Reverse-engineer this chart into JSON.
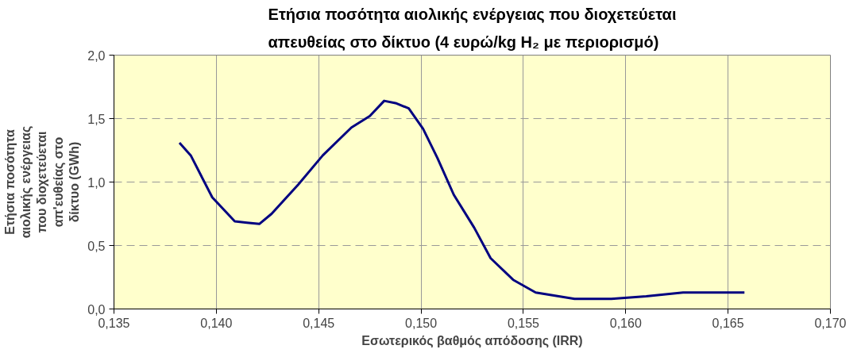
{
  "chart_data": {
    "type": "line",
    "title": "Ετήσια ποσότητα αιολικής ενέργειας που διοχετεύεται απευθείας στο δίκτυο (4 ευρώ/kg H₂ με περιορισμό)",
    "xlabel": "Εσωτερικός βαθμός απόδοσης (IRR)",
    "ylabel": "Ετήσια ποσότητα αιολικής ενέργειας που διοχετεύεται απ'ευθείας στο δίκτυο (GWh)",
    "x": [
      0.1382,
      0.13875,
      0.1398,
      0.1409,
      0.1415,
      0.1421,
      0.1427,
      0.144,
      0.1452,
      0.1466,
      0.1475,
      0.1482,
      0.1488,
      0.1494,
      0.1501,
      0.1508,
      0.1516,
      0.1526,
      0.1534,
      0.1545,
      0.1556,
      0.1575,
      0.1593,
      0.161,
      0.1628,
      0.1658
    ],
    "series": [
      {
        "color": "#000080",
        "values": [
          1.31,
          1.21,
          0.88,
          0.69,
          0.68,
          0.67,
          0.75,
          0.98,
          1.21,
          1.43,
          1.52,
          1.64,
          1.62,
          1.58,
          1.42,
          1.19,
          0.9,
          0.64,
          0.4,
          0.23,
          0.13,
          0.08,
          0.08,
          0.1,
          0.13,
          0.13
        ]
      }
    ],
    "xlim": [
      0.135,
      0.17
    ],
    "xticks": [
      {
        "value": 0.135,
        "label": "0,135"
      },
      {
        "value": 0.14,
        "label": "0,140"
      },
      {
        "value": 0.145,
        "label": "0,145"
      },
      {
        "value": 0.15,
        "label": "0,150"
      },
      {
        "value": 0.155,
        "label": "0,155"
      },
      {
        "value": 0.16,
        "label": "0,160"
      },
      {
        "value": 0.165,
        "label": "0,165"
      },
      {
        "value": 0.17,
        "label": "0,170"
      }
    ],
    "ylim": [
      0,
      2
    ],
    "yticks": [
      {
        "value": 0,
        "label": "0,0"
      },
      {
        "value": 0.5,
        "label": "0,5"
      },
      {
        "value": 1,
        "label": "1,0"
      },
      {
        "value": 1.5,
        "label": "1,5"
      },
      {
        "value": 2,
        "label": "2,0"
      }
    ],
    "grid": true,
    "line_style": "solid",
    "marker": "none"
  }
}
